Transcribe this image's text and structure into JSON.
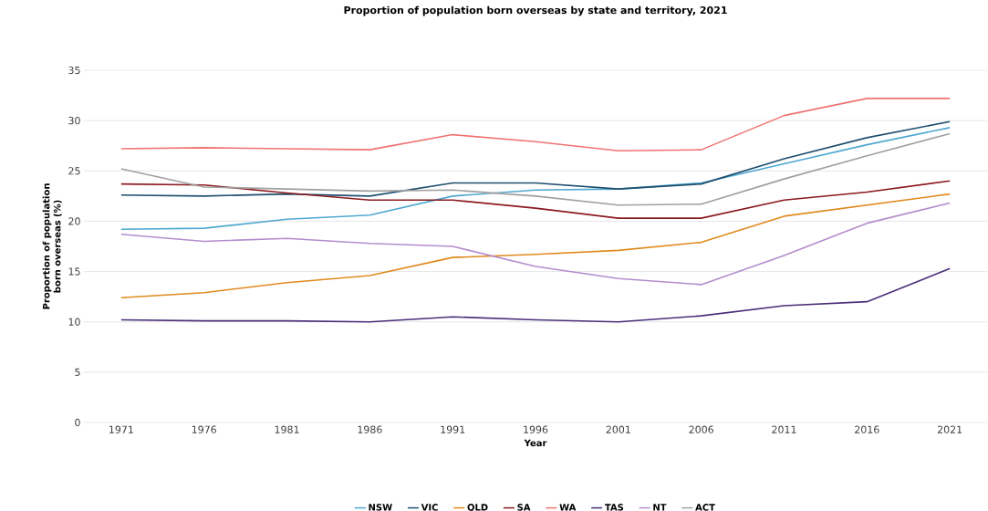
{
  "chart_data": {
    "type": "line",
    "title": "Proportion of population born overseas by state and territory, 2021",
    "xlabel": "Year",
    "ylabel": "Proportion of population born overseas (%)",
    "categories": [
      "1971",
      "1976",
      "1981",
      "1986",
      "1991",
      "1996",
      "2001",
      "2006",
      "2011",
      "2016",
      "2021"
    ],
    "ylim": [
      0,
      35
    ],
    "yticks": [
      0,
      5,
      10,
      15,
      20,
      25,
      30,
      35
    ],
    "grid": "y",
    "legend": "bottom",
    "marker": "none",
    "line_style": "solid",
    "series": [
      {
        "name": "NSW",
        "color": "#4fa8d1",
        "values": [
          19.2,
          19.3,
          20.2,
          20.6,
          22.5,
          23.1,
          23.2,
          23.8,
          25.7,
          27.6,
          29.3
        ]
      },
      {
        "name": "VIC",
        "color": "#1f4e6e",
        "values": [
          22.6,
          22.5,
          22.7,
          22.5,
          23.8,
          23.8,
          23.2,
          23.7,
          26.2,
          28.3,
          29.9
        ]
      },
      {
        "name": "QLD",
        "color": "#e08a1e",
        "values": [
          12.4,
          12.9,
          13.9,
          14.6,
          16.4,
          16.7,
          17.1,
          17.9,
          20.5,
          21.6,
          22.7
        ]
      },
      {
        "name": "SA",
        "color": "#8b1a1f",
        "values": [
          23.7,
          23.6,
          22.8,
          22.1,
          22.1,
          21.3,
          20.3,
          20.3,
          22.1,
          22.9,
          24.0
        ]
      },
      {
        "name": "WA",
        "color": "#f07372",
        "values": [
          27.2,
          27.3,
          27.2,
          27.1,
          28.6,
          27.9,
          27.0,
          27.1,
          30.5,
          32.2,
          32.2
        ]
      },
      {
        "name": "TAS",
        "color": "#4a2f7a",
        "values": [
          10.2,
          10.1,
          10.1,
          10.0,
          10.5,
          10.2,
          10.0,
          10.6,
          11.6,
          12.0,
          15.3
        ]
      },
      {
        "name": "NT",
        "color": "#b38dcc",
        "values": [
          18.7,
          18.0,
          18.3,
          17.8,
          17.5,
          15.5,
          14.3,
          13.7,
          16.6,
          19.8,
          21.8
        ]
      },
      {
        "name": "ACT",
        "color": "#a0a0a0",
        "values": [
          25.2,
          23.4,
          23.2,
          23.0,
          23.1,
          22.5,
          21.6,
          21.7,
          24.2,
          26.5,
          28.7
        ]
      }
    ]
  }
}
